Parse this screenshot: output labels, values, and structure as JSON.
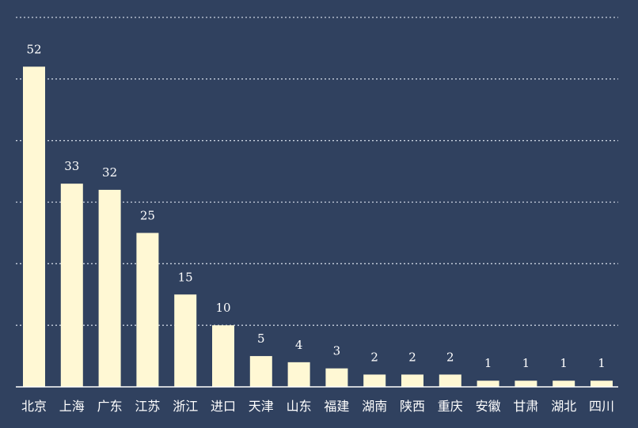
{
  "chart_data": {
    "type": "bar",
    "categories": [
      "北京",
      "上海",
      "广东",
      "江苏",
      "浙江",
      "进口",
      "天津",
      "山东",
      "福建",
      "湖南",
      "陕西",
      "重庆",
      "安徽",
      "甘肃",
      "湖北",
      "四川"
    ],
    "values": [
      52,
      33,
      32,
      25,
      15,
      10,
      5,
      4,
      3,
      2,
      2,
      2,
      1,
      1,
      1,
      1
    ],
    "title": "",
    "xlabel": "",
    "ylabel": "",
    "ylim": [
      0,
      60
    ],
    "grid": true,
    "legend": "none",
    "data_labels": true
  },
  "colors": {
    "background": "#30415f",
    "bar": "#fff8d4",
    "text": "#ffffff",
    "grid": "#c9d2e0"
  }
}
